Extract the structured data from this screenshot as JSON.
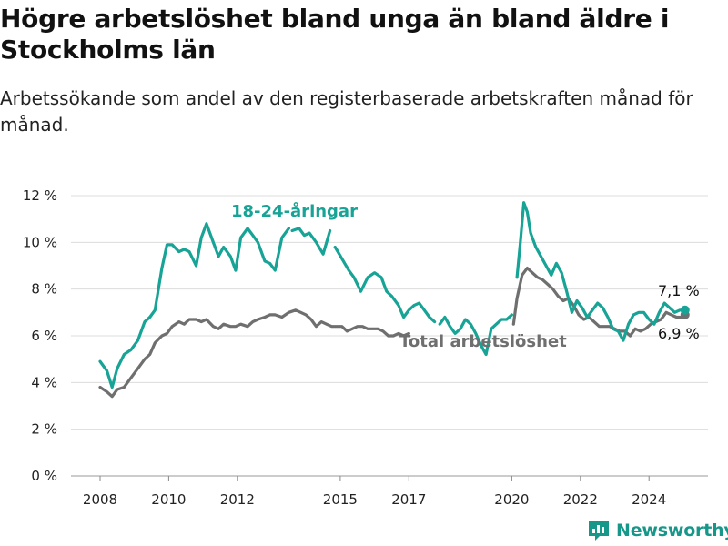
{
  "header": {
    "title": "Högre arbetslöshet bland unga än bland äldre i Stockholms län",
    "subtitle": "Arbetssökande som andel av den registerbaserade arbetskraften månad för månad."
  },
  "brand": {
    "name": "Newsworthy",
    "icon": "newsworthy-logo-icon",
    "color": "#17978a"
  },
  "chart_data": {
    "type": "line",
    "title": "",
    "xlabel": "",
    "ylabel": "",
    "ylim": [
      0,
      12
    ],
    "xlim": [
      2007.5,
      2025.4
    ],
    "y_ticks": [
      0,
      2,
      4,
      6,
      8,
      10,
      12
    ],
    "y_tick_labels": [
      "0 %",
      "2 %",
      "4 %",
      "6 %",
      "8 %",
      "10 %",
      "12 %"
    ],
    "x_ticks": [
      2008,
      2010,
      2012,
      2015,
      2017,
      2020,
      2022,
      2024
    ],
    "x_tick_labels": [
      "2008",
      "2010",
      "2012",
      "2015",
      "2017",
      "2020",
      "2022",
      "2024"
    ],
    "grid": true,
    "legend": "none",
    "series": [
      {
        "name": "18-24-åringar",
        "color": "#17a395",
        "end_label": "7,1 %",
        "segments": [
          {
            "x": [
              2008.0,
              2008.2,
              2008.35,
              2008.5,
              2008.7,
              2008.9,
              2009.1,
              2009.3,
              2009.45,
              2009.6,
              2009.8,
              2009.95,
              2010.1,
              2010.3,
              2010.45,
              2010.6,
              2010.8,
              2010.95,
              2011.1,
              2011.3,
              2011.45,
              2011.6,
              2011.8,
              2011.95,
              2012.1,
              2012.3,
              2012.45,
              2012.6,
              2012.8,
              2012.95,
              2013.1,
              2013.3,
              2013.5
            ],
            "y": [
              4.9,
              4.5,
              3.8,
              4.6,
              5.2,
              5.4,
              5.8,
              6.6,
              6.8,
              7.1,
              8.9,
              9.9,
              9.9,
              9.6,
              9.7,
              9.6,
              9.0,
              10.2,
              10.8,
              10.0,
              9.4,
              9.8,
              9.4,
              8.8,
              10.2,
              10.6,
              10.3,
              10.0,
              9.2,
              9.1,
              8.8,
              10.2,
              10.6
            ]
          },
          {
            "x": [
              2013.6,
              2013.8,
              2013.95,
              2014.1,
              2014.3,
              2014.5,
              2014.7
            ],
            "y": [
              10.5,
              10.6,
              10.3,
              10.4,
              10.0,
              9.5,
              10.5
            ]
          },
          {
            "x": [
              2014.85,
              2015.05,
              2015.25,
              2015.4,
              2015.6,
              2015.8,
              2016.0,
              2016.2,
              2016.35,
              2016.5,
              2016.7,
              2016.85,
              2017.0,
              2017.15,
              2017.3,
              2017.45,
              2017.6,
              2017.75
            ],
            "y": [
              9.8,
              9.3,
              8.8,
              8.5,
              7.9,
              8.5,
              8.7,
              8.5,
              7.9,
              7.7,
              7.3,
              6.8,
              7.1,
              7.3,
              7.4,
              7.1,
              6.8,
              6.6
            ]
          },
          {
            "x": [
              2017.9,
              2018.05,
              2018.2,
              2018.35,
              2018.5,
              2018.65,
              2018.8,
              2018.95,
              2019.1,
              2019.25,
              2019.4,
              2019.55,
              2019.7,
              2019.85,
              2020.0
            ],
            "y": [
              6.5,
              6.8,
              6.4,
              6.1,
              6.3,
              6.7,
              6.5,
              6.1,
              5.6,
              5.2,
              6.3,
              6.5,
              6.7,
              6.7,
              6.9
            ]
          },
          {
            "x": [
              2020.15,
              2020.25,
              2020.35,
              2020.45,
              2020.55,
              2020.7,
              2020.85,
              2021.0,
              2021.15,
              2021.3,
              2021.45,
              2021.6,
              2021.75,
              2021.9,
              2022.05,
              2022.2,
              2022.35,
              2022.5,
              2022.65,
              2022.8,
              2022.95,
              2023.1,
              2023.25,
              2023.4,
              2023.55,
              2023.7,
              2023.85,
              2024.0,
              2024.15,
              2024.3,
              2024.45,
              2024.6,
              2024.75,
              2024.9,
              2025.05
            ],
            "y": [
              8.5,
              10.0,
              11.7,
              11.3,
              10.4,
              9.8,
              9.4,
              9.0,
              8.6,
              9.1,
              8.7,
              7.9,
              7.0,
              7.5,
              7.2,
              6.8,
              7.1,
              7.4,
              7.2,
              6.8,
              6.3,
              6.2,
              5.8,
              6.5,
              6.9,
              7.0,
              7.0,
              6.7,
              6.5,
              7.0,
              7.4,
              7.2,
              7.0,
              7.1,
              7.1
            ]
          }
        ]
      },
      {
        "name": "Total arbetslöshet",
        "color": "#6f6f6f",
        "end_label": "6,9 %",
        "segments": [
          {
            "x": [
              2008.0,
              2008.2,
              2008.35,
              2008.5,
              2008.7,
              2008.9,
              2009.1,
              2009.3,
              2009.45,
              2009.6,
              2009.8,
              2009.95,
              2010.1,
              2010.3,
              2010.45,
              2010.6,
              2010.8,
              2010.95,
              2011.1,
              2011.3,
              2011.45,
              2011.6,
              2011.8,
              2011.95,
              2012.1,
              2012.3,
              2012.45,
              2012.6,
              2012.8,
              2012.95,
              2013.1,
              2013.3,
              2013.5,
              2013.7,
              2013.85,
              2014.0,
              2014.15,
              2014.3,
              2014.45,
              2014.6,
              2014.75,
              2014.9,
              2015.05,
              2015.2,
              2015.35,
              2015.5,
              2015.65,
              2015.8,
              2015.95,
              2016.1,
              2016.25,
              2016.4,
              2016.55,
              2016.7,
              2016.85,
              2017.0
            ],
            "y": [
              3.8,
              3.6,
              3.4,
              3.7,
              3.8,
              4.2,
              4.6,
              5.0,
              5.2,
              5.7,
              6.0,
              6.1,
              6.4,
              6.6,
              6.5,
              6.7,
              6.7,
              6.6,
              6.7,
              6.4,
              6.3,
              6.5,
              6.4,
              6.4,
              6.5,
              6.4,
              6.6,
              6.7,
              6.8,
              6.9,
              6.9,
              6.8,
              7.0,
              7.1,
              7.0,
              6.9,
              6.7,
              6.4,
              6.6,
              6.5,
              6.4,
              6.4,
              6.4,
              6.2,
              6.3,
              6.4,
              6.4,
              6.3,
              6.3,
              6.3,
              6.2,
              6.0,
              6.0,
              6.1,
              6.0,
              6.1
            ]
          }
        ],
        "clip_segments": [
          {
            "x": [
              2020.05,
              2020.15,
              2020.3,
              2020.45,
              2020.6,
              2020.75,
              2020.9,
              2021.05,
              2021.2,
              2021.35,
              2021.5,
              2021.65,
              2021.8,
              2021.95,
              2022.1,
              2022.25,
              2022.4,
              2022.55,
              2022.7,
              2022.85,
              2023.0,
              2023.15,
              2023.3,
              2023.45,
              2023.6,
              2023.75,
              2023.9,
              2024.05,
              2024.2,
              2024.35,
              2024.5,
              2024.65,
              2024.8,
              2024.95,
              2025.05
            ],
            "y": [
              6.5,
              7.6,
              8.6,
              8.9,
              8.7,
              8.5,
              8.4,
              8.2,
              8.0,
              7.7,
              7.5,
              7.6,
              7.3,
              6.9,
              6.7,
              6.8,
              6.6,
              6.4,
              6.4,
              6.4,
              6.3,
              6.2,
              6.2,
              6.0,
              6.3,
              6.2,
              6.3,
              6.5,
              6.6,
              6.7,
              7.0,
              6.9,
              6.8,
              6.8,
              6.9
            ]
          }
        ]
      }
    ],
    "annotations": [
      {
        "text": "18-24-åringar",
        "series": 0
      },
      {
        "text": "Total arbetslöshet",
        "series": 1
      }
    ]
  }
}
